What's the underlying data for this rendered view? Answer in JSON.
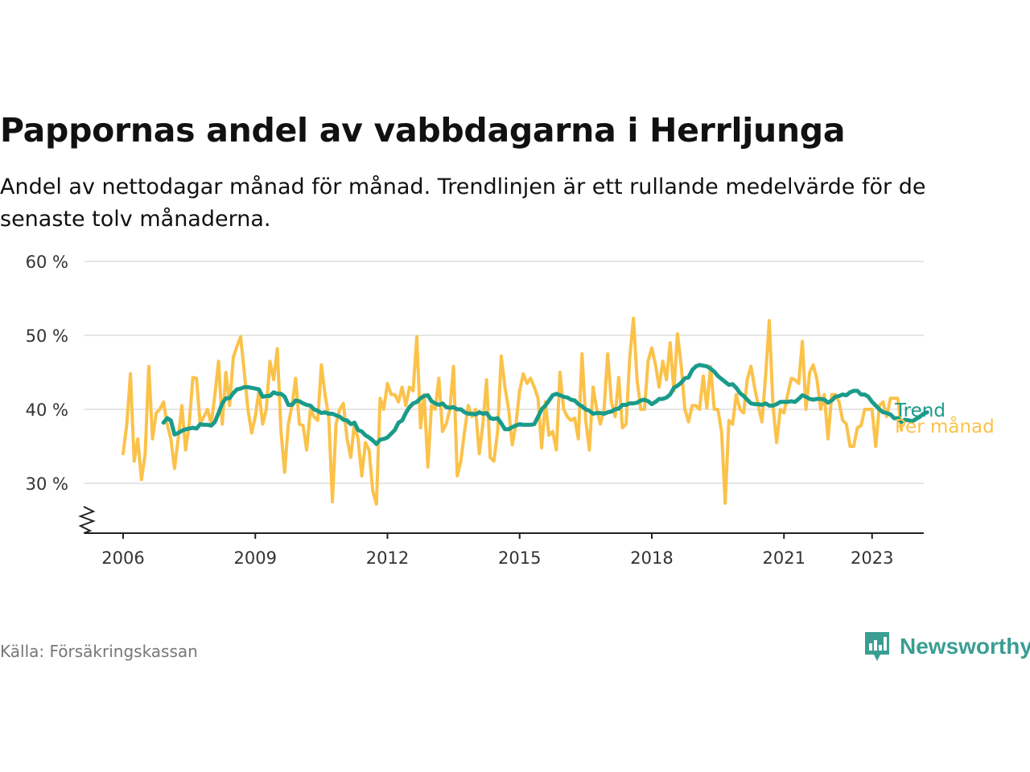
{
  "header": {
    "title": "Pappornas andel av vabbdagarna i Herrljunga",
    "subtitle": "Andel av nettodagar månad för månad. Trendlinjen är ett rullande medelvärde för de senaste tolv månaderna."
  },
  "footer": {
    "source": "Källa: Försäkringskassan",
    "brand": "Newsworthy"
  },
  "colors": {
    "trend": "#1a9b8a",
    "monthly": "#fbc24a",
    "grid": "#dddddd",
    "axis": "#222222"
  },
  "chart_data": {
    "type": "line",
    "ylim": [
      24,
      60
    ],
    "xlim": [
      2005.9,
      2023.6
    ],
    "y_ticks": [
      {
        "value": 30,
        "label": "30 %"
      },
      {
        "value": 40,
        "label": "40 %"
      },
      {
        "value": 50,
        "label": "50 %"
      },
      {
        "value": 60,
        "label": "60 %"
      }
    ],
    "x_ticks": [
      {
        "value": 2006,
        "label": "2006"
      },
      {
        "value": 2009,
        "label": "2009"
      },
      {
        "value": 2012,
        "label": "2012"
      },
      {
        "value": 2015,
        "label": "2015"
      },
      {
        "value": 2018,
        "label": "2018"
      },
      {
        "value": 2021,
        "label": "2021"
      },
      {
        "value": 2023,
        "label": "2023"
      }
    ],
    "series": [
      {
        "name": "Per månad",
        "color": "#fbc24a",
        "x_start": 2006.0,
        "step": 0.083333,
        "values": [
          34,
          38,
          44.8,
          33,
          36,
          30.5,
          34,
          45.8,
          36,
          39.5,
          40,
          41,
          38,
          36,
          32,
          36,
          40.5,
          34.5,
          38,
          44.3,
          44.2,
          38,
          39,
          40,
          38,
          42,
          46.5,
          38,
          45,
          40.5,
          47,
          48.5,
          49.8,
          45,
          40,
          36.8,
          39,
          42.5,
          38,
          40,
          46.5,
          44,
          48.2,
          37,
          31.5,
          38,
          40.5,
          44.2,
          38,
          37.8,
          34.5,
          40,
          39,
          38.5,
          46,
          42,
          39,
          27.5,
          38,
          40,
          40.8,
          36,
          33.5,
          38,
          36,
          31,
          35.5,
          34.5,
          29,
          27.2,
          41.5,
          40,
          43.5,
          42,
          42,
          41,
          43,
          40.5,
          43,
          42.5,
          49.8,
          37.5,
          42,
          32.2,
          40.5,
          40,
          44.2,
          37,
          38,
          40,
          45.8,
          31,
          33,
          37,
          40.5,
          39,
          40,
          34,
          38,
          44,
          33.5,
          33,
          37,
          47.2,
          43,
          40,
          35.2,
          38,
          42.5,
          44.8,
          43.5,
          44.2,
          43,
          41.5,
          34.8,
          41,
          36.5,
          37,
          34.5,
          45,
          40,
          39,
          38.5,
          38.8,
          36,
          47.5,
          38.5,
          34.5,
          43,
          40,
          38,
          40,
          47.5,
          41,
          39,
          44.3,
          37.5,
          38,
          47,
          52.3,
          44,
          40,
          40,
          46.5,
          48.3,
          46,
          43,
          46.5,
          44,
          49,
          42.5,
          50.2,
          46,
          40,
          38.3,
          40.5,
          40.5,
          40,
          44.5,
          40.2,
          45.8,
          40,
          40,
          37,
          27.3,
          38.5,
          38,
          42,
          40,
          39.5,
          44,
          45.8,
          43,
          40.5,
          38.3,
          44.5,
          52,
          40.5,
          35.5,
          40,
          39.5,
          42,
          44.2,
          44,
          43.5,
          49.2,
          40,
          45,
          46,
          44,
          40,
          42,
          36,
          42,
          42,
          41,
          38.5,
          38,
          35,
          35,
          37.5,
          37.8,
          40,
          40,
          40,
          35,
          40.5,
          41,
          39,
          41.5,
          41.5,
          41.5,
          37.2
        ]
      },
      {
        "name": "Trend",
        "color": "#1a9b8a",
        "x_start": 2006.917,
        "step": 0.083333,
        "values": [
          38.2,
          38.8,
          38.5,
          36.6,
          36.8,
          37.1,
          37.3,
          37.4,
          37.5,
          37.4,
          38.0,
          37.9,
          37.9,
          37.8,
          38.3,
          39.5,
          40.8,
          41.5,
          41.5,
          42.2,
          42.7,
          42.8,
          43.0,
          43.0,
          42.9,
          42.8,
          42.7,
          41.7,
          41.8,
          41.8,
          42.3,
          42.1,
          42.1,
          41.7,
          40.6,
          40.6,
          41.2,
          41.1,
          40.8,
          40.6,
          40.5,
          40.0,
          39.8,
          39.5,
          39.6,
          39.4,
          39.4,
          39.2,
          39.0,
          38.6,
          38.5,
          38.0,
          38.2,
          37.2,
          37.0,
          36.5,
          36.2,
          35.8,
          35.3,
          35.9,
          36.0,
          36.2,
          36.7,
          37.2,
          38.2,
          38.5,
          39.5,
          40.3,
          40.8,
          41.0,
          41.5,
          41.8,
          41.9,
          41.1,
          40.8,
          40.6,
          40.8,
          40.3,
          40.2,
          40.3,
          40.0,
          40.0,
          39.6,
          39.4,
          39.4,
          39.3,
          39.6,
          39.4,
          39.5,
          38.8,
          38.7,
          38.8,
          38.1,
          37.3,
          37.3,
          37.6,
          37.8,
          38.0,
          37.9,
          37.9,
          37.9,
          38.0,
          39.0,
          40.0,
          40.5,
          41.2,
          41.9,
          42.1,
          41.9,
          41.7,
          41.6,
          41.3,
          41.2,
          40.7,
          40.4,
          40.0,
          39.8,
          39.4,
          39.5,
          39.5,
          39.4,
          39.6,
          39.7,
          40.0,
          40.1,
          40.6,
          40.6,
          40.8,
          40.8,
          40.9,
          41.2,
          41.3,
          41.1,
          40.7,
          41.0,
          41.4,
          41.4,
          41.6,
          42.0,
          42.9,
          43.2,
          43.6,
          44.2,
          44.3,
          45.3,
          45.8,
          46.0,
          45.9,
          45.8,
          45.5,
          45.1,
          44.5,
          44.1,
          43.7,
          43.3,
          43.4,
          42.9,
          42.2,
          41.8,
          41.3,
          40.8,
          40.7,
          40.7,
          40.6,
          40.8,
          40.5,
          40.5,
          40.7,
          41.0,
          41.0,
          41.0,
          41.1,
          41.0,
          41.4,
          41.9,
          41.7,
          41.4,
          41.3,
          41.4,
          41.4,
          41.3,
          40.9,
          41.2,
          41.7,
          41.8,
          42.0,
          41.9,
          42.3,
          42.5,
          42.5,
          42.0,
          42.0,
          41.7,
          41.0,
          40.5,
          40.0,
          39.6,
          39.5,
          39.3,
          38.8,
          38.8,
          38.3,
          38.6,
          38.5,
          38.4,
          38.7,
          39.0,
          39.4,
          39.6
        ]
      }
    ]
  }
}
